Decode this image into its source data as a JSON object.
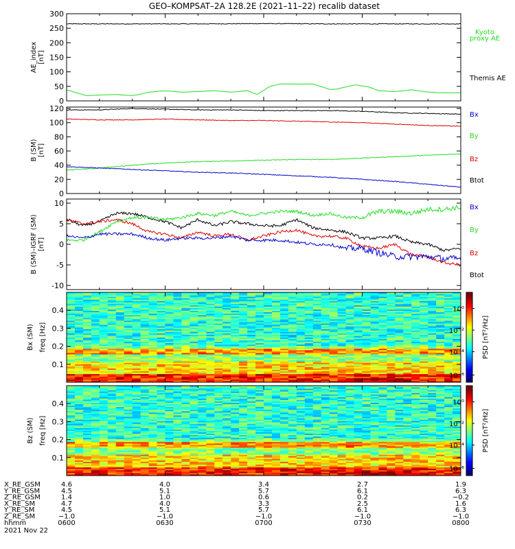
{
  "title": "GEO–KOMPSAT–2A 128.2E (2021–11–22) recalib dataset",
  "colors": {
    "black": "#000000",
    "green": "#22dd22",
    "red": "#dd0000",
    "blue": "#0000cc"
  },
  "chart_data": [
    {
      "id": "ae",
      "type": "line",
      "ylabel": "AE_index",
      "yunit": "[nT]",
      "ylim": [
        0,
        300
      ],
      "yticks": [
        0,
        50,
        100,
        150,
        200,
        250,
        300
      ],
      "xlim": [
        0,
        120
      ],
      "series": [
        {
          "name": "Themis AE",
          "color": "#000000",
          "x": [
            0,
            20,
            40,
            60,
            80,
            100,
            120
          ],
          "y": [
            265,
            265,
            265,
            266,
            265,
            265,
            265
          ]
        },
        {
          "name": "Kyoto proxy AE",
          "color": "#22dd22",
          "x": [
            0,
            3,
            6,
            10,
            15,
            20,
            22,
            25,
            30,
            35,
            40,
            45,
            50,
            55,
            58,
            62,
            65,
            70,
            75,
            80,
            82,
            85,
            88,
            92,
            95,
            100,
            105,
            110,
            115,
            120
          ],
          "y": [
            38,
            28,
            18,
            20,
            22,
            18,
            22,
            30,
            35,
            30,
            32,
            35,
            30,
            35,
            22,
            50,
            58,
            58,
            58,
            40,
            40,
            48,
            55,
            48,
            35,
            32,
            38,
            30,
            28,
            28
          ]
        }
      ],
      "labels": [
        {
          "text": "Kyoto",
          "color": "#22dd22"
        },
        {
          "text": "proxy AE",
          "color": "#22dd22"
        },
        {
          "text": "Themis AE",
          "color": "#000000"
        }
      ]
    },
    {
      "id": "b",
      "type": "line",
      "ylabel": "B (SM)",
      "yunit": "[nT]",
      "ylim": [
        0,
        122
      ],
      "yticks": [
        0,
        20,
        40,
        60,
        80,
        100,
        120
      ],
      "xlim": [
        0,
        120
      ],
      "series": [
        {
          "name": "Btot",
          "color": "#000000",
          "x": [
            0,
            10,
            20,
            30,
            40,
            50,
            60,
            70,
            80,
            90,
            100,
            110,
            120
          ],
          "y": [
            118,
            118,
            120,
            119,
            118,
            118,
            117,
            117,
            117,
            116,
            114,
            113,
            112
          ]
        },
        {
          "name": "Bz",
          "color": "#dd0000",
          "x": [
            0,
            10,
            20,
            30,
            40,
            50,
            60,
            70,
            80,
            90,
            100,
            110,
            120
          ],
          "y": [
            105,
            104,
            104,
            105,
            104,
            103,
            103,
            102,
            101,
            100,
            98,
            96,
            95
          ]
        },
        {
          "name": "By",
          "color": "#22dd22",
          "x": [
            0,
            10,
            20,
            30,
            40,
            50,
            60,
            70,
            80,
            90,
            100,
            110,
            120
          ],
          "y": [
            33,
            36,
            40,
            43,
            45,
            46,
            47,
            48,
            48,
            50,
            52,
            54,
            56
          ]
        },
        {
          "name": "Bx",
          "color": "#0000cc",
          "x": [
            0,
            10,
            20,
            30,
            40,
            50,
            60,
            70,
            80,
            90,
            100,
            110,
            120
          ],
          "y": [
            38,
            36,
            34,
            32,
            30,
            29,
            27,
            25,
            23,
            20,
            17,
            13,
            9
          ]
        }
      ],
      "labels": [
        {
          "text": "Bx",
          "color": "#0000cc"
        },
        {
          "text": "By",
          "color": "#22dd22"
        },
        {
          "text": "Bz",
          "color": "#dd0000"
        },
        {
          "text": "Btot",
          "color": "#000000"
        }
      ]
    },
    {
      "id": "db",
      "type": "line",
      "ylabel": "B (SM)–IGRF (SM)",
      "yunit": "[nT]",
      "ylim": [
        -11,
        11
      ],
      "yticks": [
        -10,
        -5,
        0,
        5,
        10
      ],
      "xlim": [
        0,
        120
      ],
      "series": [
        {
          "name": "Btot",
          "color": "#000000",
          "x": [
            0,
            5,
            10,
            15,
            20,
            25,
            30,
            35,
            40,
            45,
            50,
            55,
            60,
            65,
            70,
            75,
            80,
            85,
            90,
            95,
            100,
            105,
            110,
            115,
            120
          ],
          "y": [
            6,
            4.5,
            5.5,
            7.5,
            7.5,
            6.5,
            5.5,
            4,
            6,
            4.5,
            5.5,
            5,
            4.5,
            4.5,
            6,
            4,
            3.5,
            3,
            1.5,
            1.5,
            2,
            0.5,
            0,
            -1.5,
            -1
          ]
        },
        {
          "name": "By",
          "color": "#22dd22",
          "x": [
            0,
            5,
            10,
            15,
            20,
            25,
            30,
            35,
            40,
            45,
            50,
            55,
            60,
            65,
            70,
            75,
            80,
            85,
            90,
            95,
            100,
            105,
            110,
            115,
            120
          ],
          "y": [
            1,
            1,
            3,
            5.5,
            6.5,
            6.5,
            6,
            6.5,
            7.5,
            7,
            8,
            7,
            7.5,
            8,
            8,
            7,
            7.5,
            6.5,
            6.5,
            8,
            8,
            7.5,
            8.5,
            8.5,
            9
          ]
        },
        {
          "name": "Bz",
          "color": "#dd0000",
          "x": [
            0,
            5,
            10,
            15,
            20,
            25,
            30,
            35,
            40,
            45,
            50,
            55,
            60,
            65,
            70,
            75,
            80,
            85,
            90,
            95,
            100,
            105,
            110,
            115,
            120
          ],
          "y": [
            6,
            5,
            5.5,
            6,
            5,
            3,
            2.5,
            1.5,
            3,
            2,
            2.5,
            1,
            2,
            3,
            3.5,
            2,
            2,
            1.5,
            -0.5,
            -1,
            0,
            -2.5,
            -3,
            -4.5,
            -5
          ]
        },
        {
          "name": "Bx",
          "color": "#0000cc",
          "x": [
            0,
            5,
            10,
            15,
            20,
            25,
            30,
            35,
            40,
            45,
            50,
            55,
            60,
            65,
            70,
            75,
            80,
            85,
            90,
            95,
            100,
            105,
            110,
            115,
            120
          ],
          "y": [
            2,
            1.5,
            2.5,
            2.5,
            2.5,
            1.5,
            1,
            1.5,
            1.5,
            1.5,
            2,
            1,
            1,
            1,
            0.5,
            0,
            0,
            -1,
            -1,
            -2,
            -3,
            -3,
            -3,
            -3.5,
            -3.5
          ]
        }
      ],
      "labels": [
        {
          "text": "Bx",
          "color": "#0000cc"
        },
        {
          "text": "By",
          "color": "#22dd22"
        },
        {
          "text": "Bz",
          "color": "#dd0000"
        },
        {
          "text": "Btot",
          "color": "#000000"
        }
      ]
    },
    {
      "id": "spec_bx",
      "type": "heatmap",
      "ylabel": "Bx (SM)",
      "yunit": "freq [Hz]",
      "ylim": [
        0,
        0.5
      ],
      "yticks": [
        0.1,
        0.2,
        0.3,
        0.4
      ],
      "xlim": [
        0,
        120
      ],
      "colorbar": {
        "label": "PSD [nT²/Hz]",
        "ticks": [
          "10⁰",
          "10⁻²",
          "10⁻⁴",
          "10⁻⁶"
        ]
      }
    },
    {
      "id": "spec_bz",
      "type": "heatmap",
      "ylabel": "Bz (SM)",
      "yunit": "freq [Hz]",
      "ylim": [
        0,
        0.5
      ],
      "yticks": [
        0.1,
        0.2,
        0.3,
        0.4
      ],
      "xlim": [
        0,
        120
      ],
      "colorbar": {
        "label": "PSD [nT²/Hz]",
        "ticks": [
          "10⁰",
          "10⁻²",
          "10⁻⁴",
          "10⁻⁶"
        ]
      }
    }
  ],
  "ephemeris": {
    "rows": [
      {
        "label": "X_RE_GSM",
        "values": [
          "4.6",
          "4.0",
          "3.4",
          "2.7",
          "1.9"
        ]
      },
      {
        "label": "Y_RE_GSM",
        "values": [
          "4.5",
          "5.1",
          "5.7",
          "6.1",
          "6.3"
        ]
      },
      {
        "label": "Z_RE_GSM",
        "values": [
          "1.4",
          "1.0",
          "0.6",
          "0.2",
          "−0.2"
        ]
      },
      {
        "label": "X_RE_SM",
        "values": [
          "4.7",
          "4.0",
          "3.3",
          "2.5",
          "1.6"
        ]
      },
      {
        "label": "Y_RE_SM",
        "values": [
          "4.5",
          "5.1",
          "5.7",
          "6.1",
          "6.3"
        ]
      },
      {
        "label": "Z_RE_SM",
        "values": [
          "−1.0",
          "−1.0",
          "−1.0",
          "−1.0",
          "−1.0"
        ]
      },
      {
        "label": "hhmm",
        "values": [
          "0600",
          "0630",
          "0700",
          "0730",
          "0800"
        ]
      }
    ],
    "date": "2021 Nov 22"
  }
}
